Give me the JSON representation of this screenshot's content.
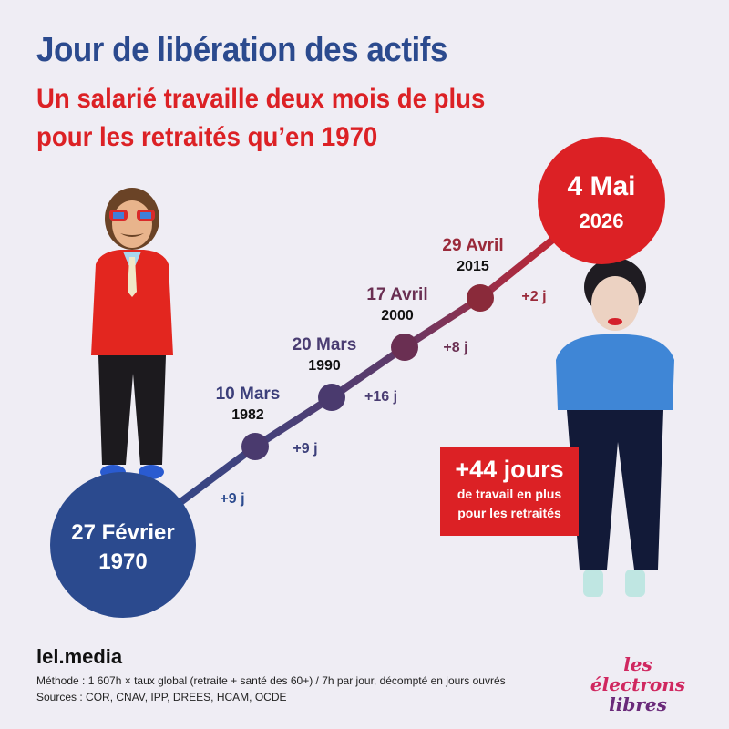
{
  "header": {
    "title": "Jour de libération des actifs",
    "subtitle_line1": "Un salarié travaille deux mois de plus",
    "subtitle_line2": "pour les retraités qu’en 1970"
  },
  "chart_data": {
    "type": "line",
    "points": [
      {
        "date": "27 Février",
        "year": "1970",
        "delta": null
      },
      {
        "date": "10 Mars",
        "year": "1982",
        "delta": "+9 j"
      },
      {
        "date": "20 Mars",
        "year": "1990",
        "delta": "+9 j"
      },
      {
        "date": "17 Avril",
        "year": "2000",
        "delta": "+16 j"
      },
      {
        "date": "29 Avril",
        "year": "2015",
        "delta": "+8 j"
      },
      {
        "date": "4 Mai",
        "year": "2026",
        "delta": "+2 j"
      }
    ],
    "colors": {
      "start": "#2b4a8e",
      "end": "#dc2125",
      "mid": "#4a3a6e"
    }
  },
  "callout": {
    "big": "+44 jours",
    "line1": "de travail en plus",
    "line2": "pour les retraités"
  },
  "footer": {
    "brand": "lel.media",
    "method": "Méthode : 1 607h × taux global (retraite + santé des 60+) / 7h par jour, décompté en jours ouvrés",
    "sources": "Sources : COR, CNAV, IPP, DREES, HCAM, OCDE"
  },
  "logo": {
    "line1": "les électrons",
    "line2": "libres"
  }
}
